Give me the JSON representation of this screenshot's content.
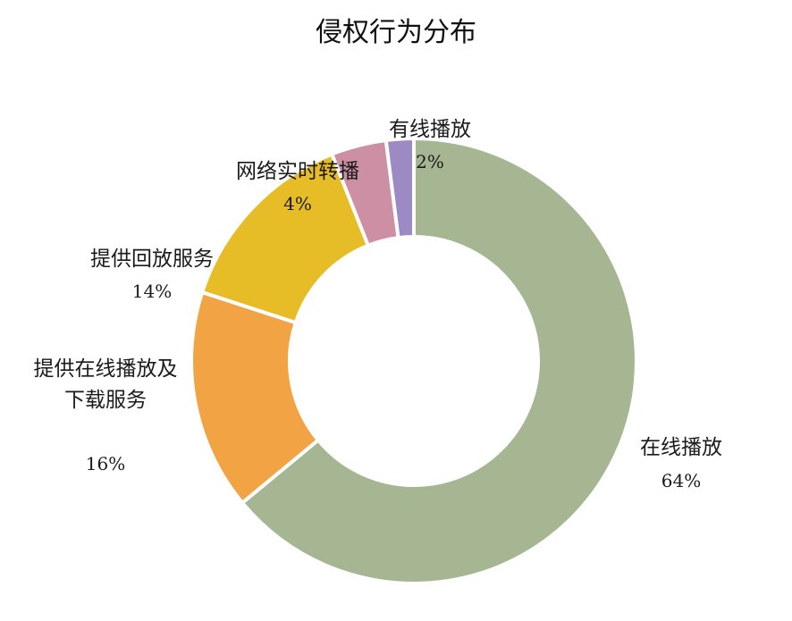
{
  "chart_data": {
    "type": "pie",
    "subtype": "donut",
    "title": "侵权行为分布",
    "legend": "none",
    "slices": [
      {
        "label": "在线播放",
        "value": 64,
        "value_label": "64%",
        "color": "#a6b592"
      },
      {
        "label": "提供在线播放及下载服务",
        "label_lines": [
          "提供在线播放及",
          "下载服务"
        ],
        "value": 16,
        "value_label": "16%",
        "color": "#f2a444"
      },
      {
        "label": "提供回放服务",
        "value": 14,
        "value_label": "14%",
        "color": "#e6bc27"
      },
      {
        "label": "网络实时转播",
        "value": 4,
        "value_label": "4%",
        "color": "#cc8fa3"
      },
      {
        "label": "有线播放",
        "value": 2,
        "value_label": "2%",
        "color": "#9d89c4"
      }
    ]
  }
}
